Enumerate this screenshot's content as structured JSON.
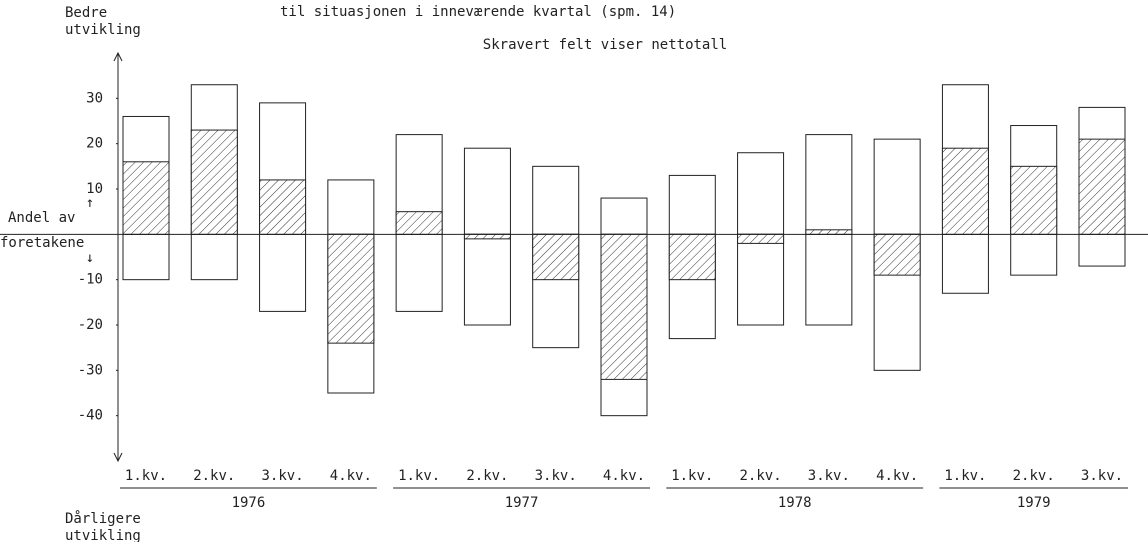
{
  "chart_data": {
    "type": "bar",
    "title": "til situasjonen i inneværende kvartal (spm. 14)",
    "subtitle": "Skravert felt viser nettotall",
    "y_top_label": [
      "Bedre",
      "utvikling"
    ],
    "y_bottom_label": [
      "Dårligere",
      "utvikling"
    ],
    "y_axis_label": [
      "Andel av",
      "foretakene"
    ],
    "groups": [
      {
        "label": "1976",
        "categories": [
          "1.kv.",
          "2.kv.",
          "3.kv.",
          "4.kv."
        ]
      },
      {
        "label": "1977",
        "categories": [
          "1.kv.",
          "2.kv.",
          "3.kv.",
          "4.kv."
        ]
      },
      {
        "label": "1978",
        "categories": [
          "1.kv.",
          "2.kv.",
          "3.kv.",
          "4.kv."
        ]
      },
      {
        "label": "1979",
        "categories": [
          "1.kv.",
          "2.kv.",
          "3.kv."
        ]
      }
    ],
    "series": [
      {
        "values": [
          26,
          33,
          29,
          12,
          22,
          19,
          15,
          8,
          13,
          18,
          22,
          21,
          33,
          24,
          28
        ],
        "color": "#ffffff"
      },
      {
        "values": [
          -10,
          -10,
          -17,
          -35,
          -17,
          -20,
          -25,
          -40,
          -23,
          -20,
          -20,
          -30,
          -13,
          -9,
          -7
        ],
        "color": "#ffffff"
      },
      {
        "values": [
          16,
          23,
          12,
          -24,
          5,
          -1,
          -10,
          -32,
          -10,
          -2,
          1,
          -9,
          19,
          15,
          21
        ],
        "color": "hatch"
      }
    ],
    "ylim": [
      -50,
      40
    ],
    "yticks": [
      30,
      20,
      10,
      -10,
      -20,
      -30,
      -40
    ],
    "grid": false
  }
}
